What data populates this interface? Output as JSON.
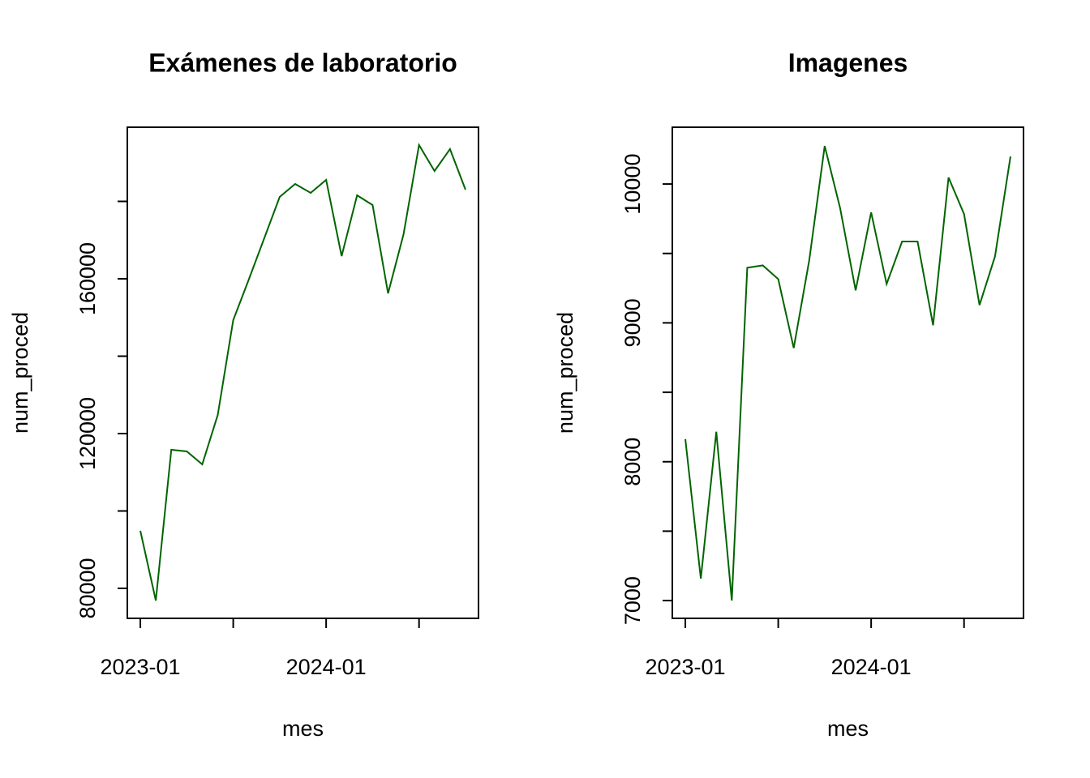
{
  "chart_data": [
    {
      "type": "line",
      "title": "Exámenes de laboratorio",
      "xlabel": "mes",
      "ylabel": "num_proced",
      "x": [
        "2023-01",
        "2023-02",
        "2023-03",
        "2023-04",
        "2023-05",
        "2023-06",
        "2023-07",
        "2023-08",
        "2023-09",
        "2023-10",
        "2023-11",
        "2023-12",
        "2024-01",
        "2024-02",
        "2024-03",
        "2024-04",
        "2024-05",
        "2024-06",
        "2024-07",
        "2024-08",
        "2024-09",
        "2024-10"
      ],
      "series": [
        {
          "color": "#006400",
          "values": [
            94870,
            76860,
            115810,
            115390,
            112040,
            124820,
            149320,
            159760,
            170450,
            181150,
            184500,
            182200,
            185550,
            165860,
            181570,
            179060,
            156230,
            171520,
            194550,
            187850,
            193510,
            183040
          ]
        }
      ],
      "ylim": [
        72250,
        199160
      ],
      "yticks": [
        80000,
        {
          "value": 100000,
          "label": null
        },
        120000,
        {
          "value": 140000,
          "label": null
        },
        160000,
        {
          "value": 180000,
          "label": null
        }
      ],
      "xticks": [
        {
          "value": "2023-01",
          "label": "2023-01"
        },
        {
          "value": "2023-07",
          "label": null
        },
        {
          "value": "2024-01",
          "label": "2024-01"
        },
        {
          "value": "2024-07",
          "label": null
        }
      ]
    },
    {
      "type": "line",
      "title": "Imagenes",
      "xlabel": "mes",
      "ylabel": "num_proced",
      "x": [
        "2023-01",
        "2023-02",
        "2023-03",
        "2023-04",
        "2023-05",
        "2023-06",
        "2023-07",
        "2023-08",
        "2023-09",
        "2023-10",
        "2023-11",
        "2023-12",
        "2024-01",
        "2024-02",
        "2024-03",
        "2024-04",
        "2024-05",
        "2024-06",
        "2024-07",
        "2024-08",
        "2024-09",
        "2024-10"
      ],
      "series": [
        {
          "color": "#006400",
          "values": [
            8163,
            7158,
            8216,
            7000,
            9397,
            9414,
            9315,
            8819,
            9449,
            10274,
            9825,
            9234,
            9796,
            9280,
            9586,
            9586,
            8983,
            10047,
            9784,
            9128,
            9479,
            10198
          ]
        }
      ],
      "ylim": [
        6872,
        10409
      ],
      "yticks": [
        7000,
        {
          "value": 7500,
          "label": null
        },
        8000,
        {
          "value": 8500,
          "label": null
        },
        9000,
        {
          "value": 9500,
          "label": null
        },
        10000
      ],
      "xticks": [
        {
          "value": "2023-01",
          "label": "2023-01"
        },
        {
          "value": "2023-07",
          "label": null
        },
        {
          "value": "2024-01",
          "label": "2024-01"
        },
        {
          "value": "2024-07",
          "label": null
        }
      ]
    }
  ]
}
